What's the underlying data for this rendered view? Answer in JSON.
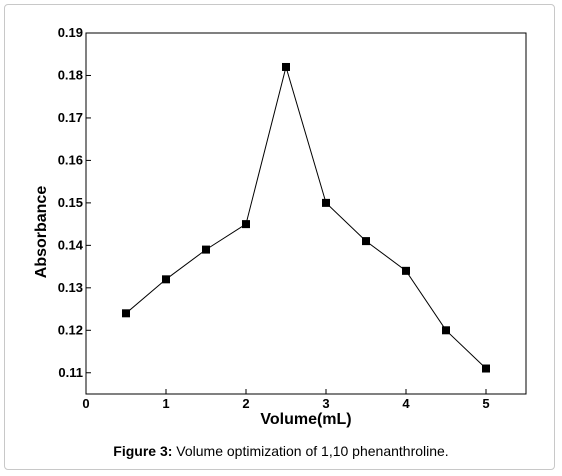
{
  "chart_data": {
    "type": "line",
    "xlabel": "Volume(mL)",
    "ylabel": "Absorbance",
    "xlim": [
      0,
      5.5
    ],
    "ylim": [
      0.105,
      0.19
    ],
    "xticks": [
      0,
      1,
      2,
      3,
      4,
      5
    ],
    "yticks": [
      0.11,
      0.12,
      0.13,
      0.14,
      0.15,
      0.16,
      0.17,
      0.18,
      0.19
    ],
    "grid": false,
    "marker": "square",
    "series": [
      {
        "x": [
          0.5,
          1.0,
          1.5,
          2.0,
          2.5,
          3.0,
          3.5,
          4.0,
          4.5,
          5.0
        ],
        "y": [
          0.124,
          0.132,
          0.139,
          0.145,
          0.182,
          0.15,
          0.141,
          0.134,
          0.12,
          0.111
        ]
      }
    ]
  },
  "caption": {
    "label": "Figure 3:",
    "text": " Volume optimization of 1,10 phenanthroline."
  }
}
